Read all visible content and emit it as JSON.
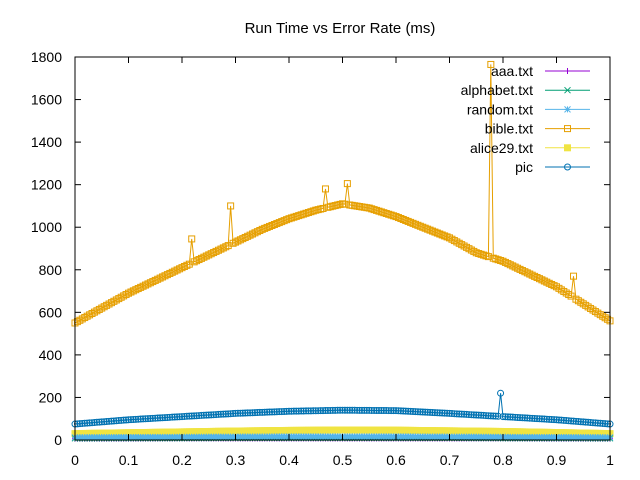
{
  "chart_data": {
    "type": "line",
    "title": "Run Time vs Error Rate (ms)",
    "xlabel": "",
    "ylabel": "",
    "xlim": [
      0,
      1
    ],
    "ylim": [
      0,
      1800
    ],
    "x_ticks": [
      "0",
      "0.1",
      "0.2",
      "0.3",
      "0.4",
      "0.5",
      "0.6",
      "0.7",
      "0.8",
      "0.9",
      "1"
    ],
    "y_ticks": [
      "0",
      "200",
      "400",
      "600",
      "800",
      "1000",
      "1200",
      "1400",
      "1600",
      "1800"
    ],
    "grid": false,
    "legend_position": "top-right",
    "series": [
      {
        "name": "aaa.txt",
        "color": "#9400d3",
        "marker": "plus",
        "x": [
          0,
          0.1,
          0.2,
          0.3,
          0.4,
          0.5,
          0.6,
          0.7,
          0.8,
          0.9,
          1
        ],
        "y": [
          6,
          6,
          7,
          7,
          7,
          7,
          7,
          7,
          7,
          6,
          6
        ]
      },
      {
        "name": "alphabet.txt",
        "color": "#009e73",
        "marker": "cross",
        "x": [
          0,
          0.1,
          0.2,
          0.3,
          0.4,
          0.5,
          0.6,
          0.7,
          0.8,
          0.9,
          1
        ],
        "y": [
          8,
          9,
          9,
          10,
          10,
          10,
          10,
          10,
          9,
          9,
          8
        ]
      },
      {
        "name": "random.txt",
        "color": "#56b4e9",
        "marker": "star",
        "x": [
          0,
          0.1,
          0.2,
          0.3,
          0.4,
          0.5,
          0.6,
          0.7,
          0.8,
          0.9,
          1
        ],
        "y": [
          12,
          13,
          14,
          15,
          16,
          16,
          16,
          15,
          14,
          13,
          12
        ]
      },
      {
        "name": "bible.txt",
        "color": "#e69f00",
        "marker": "square-open",
        "x": [
          0,
          0.05,
          0.1,
          0.15,
          0.2,
          0.25,
          0.3,
          0.35,
          0.4,
          0.45,
          0.5,
          0.55,
          0.6,
          0.65,
          0.7,
          0.75,
          0.8,
          0.85,
          0.9,
          0.95,
          1
        ],
        "y": [
          550,
          620,
          690,
          750,
          810,
          870,
          930,
          990,
          1040,
          1080,
          1110,
          1090,
          1050,
          1000,
          950,
          880,
          840,
          780,
          720,
          640,
          560
        ],
        "outliers": [
          [
            0.22,
            945
          ],
          [
            0.29,
            1100
          ],
          [
            0.47,
            1180
          ],
          [
            0.51,
            1205
          ],
          [
            0.775,
            1765
          ],
          [
            0.93,
            770
          ]
        ]
      },
      {
        "name": "alice29.txt",
        "color": "#f0e442",
        "marker": "square-filled",
        "x": [
          0,
          0.1,
          0.2,
          0.3,
          0.4,
          0.5,
          0.6,
          0.7,
          0.8,
          0.9,
          1
        ],
        "y": [
          30,
          34,
          38,
          42,
          45,
          47,
          46,
          43,
          40,
          35,
          30
        ]
      },
      {
        "name": "pic",
        "color": "#0072b2",
        "marker": "circle-open",
        "x": [
          0,
          0.1,
          0.2,
          0.3,
          0.4,
          0.5,
          0.6,
          0.7,
          0.8,
          0.9,
          1
        ],
        "y": [
          75,
          95,
          110,
          125,
          135,
          140,
          138,
          125,
          110,
          95,
          75
        ],
        "outliers": [
          [
            0.795,
            220
          ]
        ]
      }
    ]
  }
}
